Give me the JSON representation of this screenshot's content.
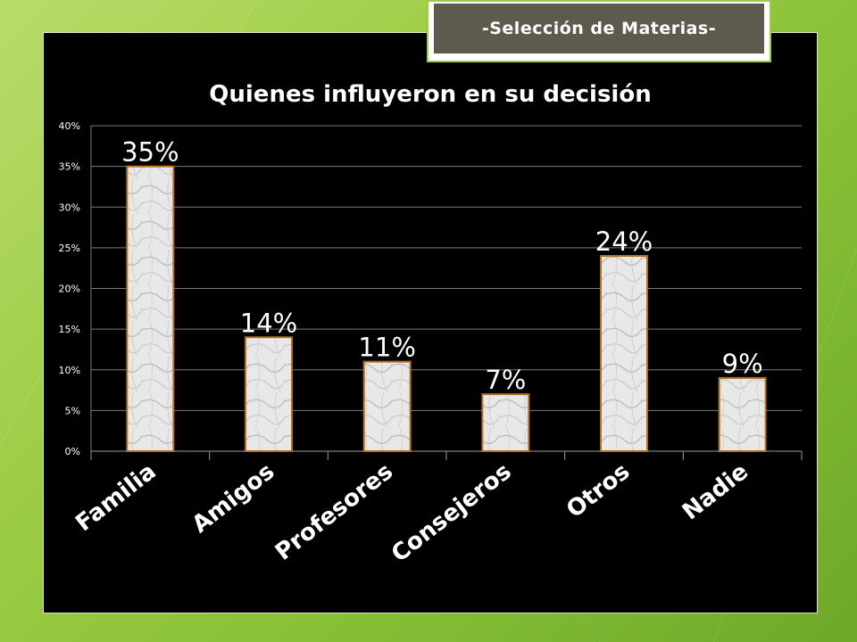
{
  "slide": {
    "banner_title": "-Selección de Materias-"
  },
  "colors": {
    "background": "#9ccc45",
    "chart_background": "#000000",
    "bar_fill": "#e6e6e6",
    "bar_stroke": "#b07020",
    "text": "#ffffff",
    "gridline": "#7a7a7a"
  },
  "chart_data": {
    "type": "bar",
    "title": "Quienes influyeron en su decisión",
    "categories": [
      "Familia",
      "Amigos",
      "Profesores",
      "Consejeros",
      "Otros",
      "Nadie"
    ],
    "values": [
      35,
      14,
      11,
      7,
      24,
      9
    ],
    "data_labels": [
      "35%",
      "14%",
      "11%",
      "7%",
      "24%",
      "9%"
    ],
    "y_ticks": [
      "0%",
      "5%",
      "10%",
      "15%",
      "20%",
      "25%",
      "30%",
      "35%",
      "40%"
    ],
    "ylim": [
      0,
      40
    ],
    "grid": true,
    "legend": "none"
  }
}
